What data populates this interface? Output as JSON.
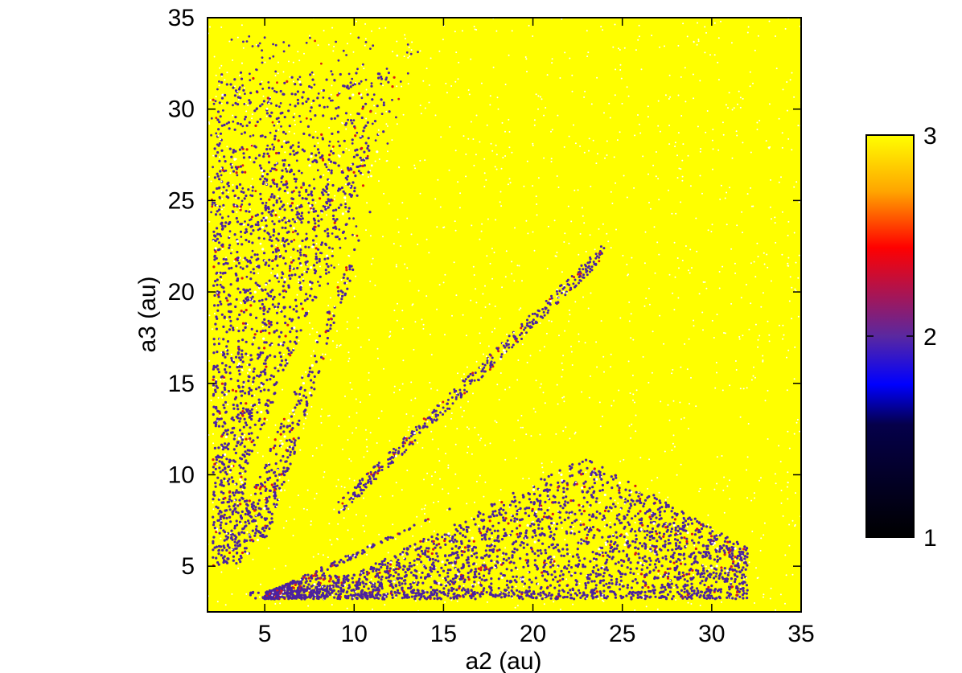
{
  "chart_data": {
    "type": "scatter",
    "title": "",
    "xlabel": "a2 (au)",
    "ylabel": "a3 (au)",
    "xlim": [
      1.8,
      35
    ],
    "ylim": [
      2.5,
      35
    ],
    "x_ticks": [
      "5",
      "10",
      "15",
      "20",
      "25",
      "30",
      "35"
    ],
    "y_ticks": [
      "5",
      "10",
      "15",
      "20",
      "25",
      "30",
      "35"
    ],
    "background_value": 3,
    "regions": [
      {
        "name": "upper-left wedge",
        "value": 2,
        "a2_range": [
          2,
          12
        ],
        "a3_range": [
          5,
          32
        ]
      },
      {
        "name": "lower-right wedge",
        "value": 2,
        "a2_range": [
          5,
          32
        ],
        "a3_range": [
          3,
          12
        ]
      },
      {
        "name": "thin band",
        "value": 2,
        "a2_range": [
          10,
          24
        ],
        "a3_range": [
          10,
          23
        ]
      }
    ],
    "colorbar": {
      "min": 1,
      "max": 3,
      "ticks": [
        "1",
        "2",
        "3"
      ],
      "colors": [
        "#000000",
        "#0000ff",
        "#5a28a0",
        "#ff0000",
        "#ffa500",
        "#ffff00"
      ]
    },
    "colors": {
      "stable": "#ffff00",
      "unstable": "#4b22a0",
      "mid": "#d81a1a"
    },
    "grid": false,
    "legend": "none"
  }
}
